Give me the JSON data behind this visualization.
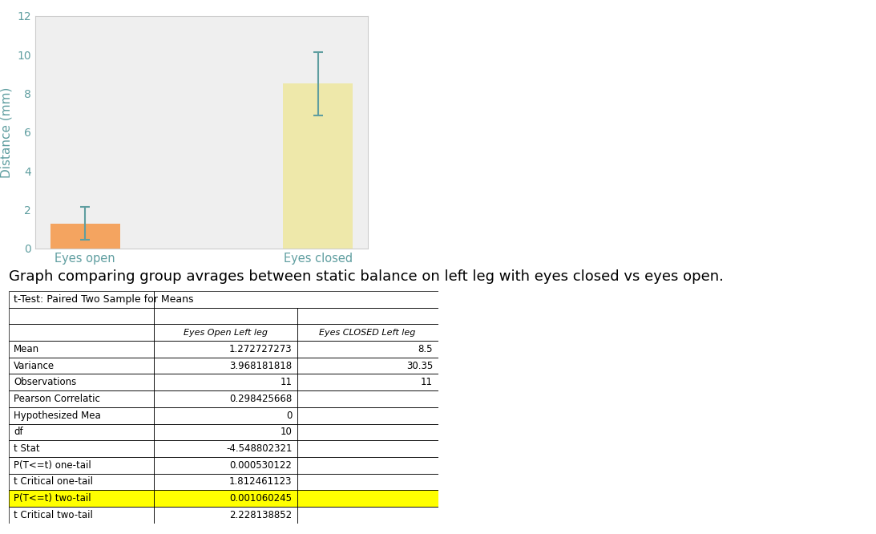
{
  "bar_categories": [
    "Eyes open",
    "Eyes closed"
  ],
  "bar_values": [
    1.272727273,
    8.5
  ],
  "bar_colors": [
    "#F4A460",
    "#EEE8AA"
  ],
  "bar_errors": [
    0.85,
    1.65
  ],
  "error_color": "#5F9EA0",
  "ylabel": "Distance (mm)",
  "ylim": [
    0,
    12
  ],
  "yticks": [
    0,
    2,
    4,
    6,
    8,
    10,
    12
  ],
  "chart_bg": "#EFEFEF",
  "axis_label_color": "#5F9EA0",
  "tick_color": "#5F9EA0",
  "caption": "Graph comparing group avrages between static balance on left leg with eyes closed vs eyes open.",
  "caption_fontsize": 13,
  "table_title": "t-Test: Paired Two Sample for Means",
  "col1_header": "Eyes Open Left leg",
  "col2_header": "Eyes CLOSED Left leg",
  "table_rows": [
    [
      "Mean",
      "1.272727273",
      "8.5"
    ],
    [
      "Variance",
      "3.968181818",
      "30.35"
    ],
    [
      "Observations",
      "11",
      "11"
    ],
    [
      "Pearson Correlatic",
      "0.298425668",
      ""
    ],
    [
      "Hypothesized Mea",
      "0",
      ""
    ],
    [
      "df",
      "10",
      ""
    ],
    [
      "t Stat",
      "-4.548802321",
      ""
    ],
    [
      "P(T<=t) one-tail",
      "0.000530122",
      ""
    ],
    [
      "t Critical one-tail",
      "1.812461123",
      ""
    ],
    [
      "P(T<=t) two-tail",
      "0.001060245",
      ""
    ],
    [
      "t Critical two-tail",
      "2.228138852",
      ""
    ]
  ],
  "highlight_row": 9,
  "highlight_color": "#FFFF00",
  "bar_width": 0.3
}
